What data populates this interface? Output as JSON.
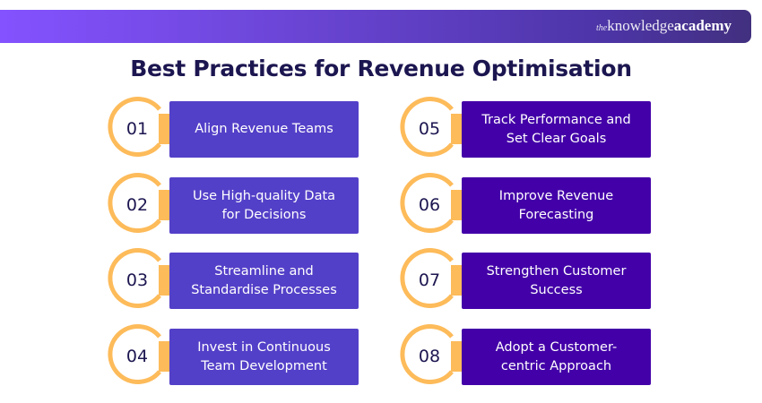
{
  "header": {
    "logo_the": "the",
    "logo_knowledge": "knowledge",
    "logo_academy": "academy"
  },
  "title": "Best Practices for Revenue Optimisation",
  "colors": {
    "left_box": "#5340c8",
    "right_box": "#4300a8",
    "accent": "#fdbb5a",
    "title": "#1c1650"
  },
  "items": [
    {
      "number": "01",
      "label": "Align Revenue Teams"
    },
    {
      "number": "02",
      "label": "Use High-quality Data for Decisions"
    },
    {
      "number": "03",
      "label": "Streamline and Standardise Processes"
    },
    {
      "number": "04",
      "label": "Invest in Continuous Team Development"
    },
    {
      "number": "05",
      "label": "Track Performance and Set Clear Goals"
    },
    {
      "number": "06",
      "label": "Improve Revenue Forecasting"
    },
    {
      "number": "07",
      "label": "Strengthen Customer Success"
    },
    {
      "number": "08",
      "label": "Adopt a Customer-centric Approach"
    }
  ]
}
